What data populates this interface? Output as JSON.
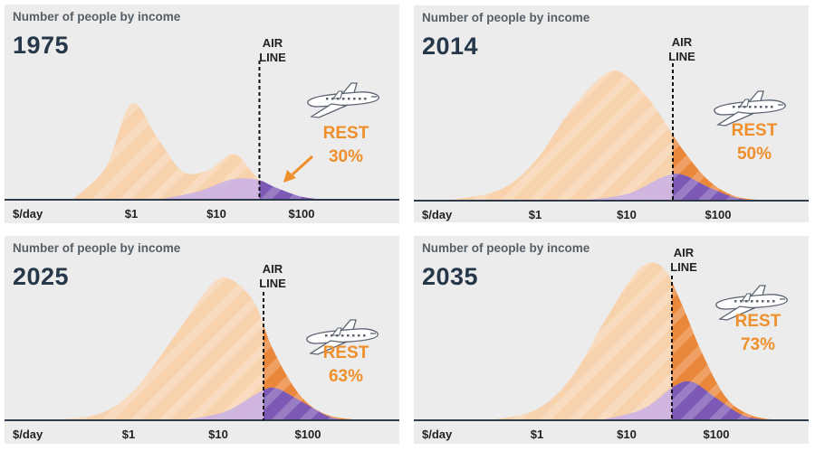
{
  "chart_data": [
    {
      "type": "area",
      "title": "Number of people by income",
      "year": "1975",
      "xlabel": "$/day",
      "x_scale": "log",
      "x_ticks": [
        "$1",
        "$10",
        "$100"
      ],
      "threshold_label": [
        "AIR",
        "LINE"
      ],
      "threshold_x": 32,
      "rest_label": "REST",
      "rest_share": "30%",
      "series": [
        {
          "name": "",
          "color": "#f7d2ad",
          "x": [
            0.2,
            0.5,
            1.0,
            2.0,
            4.0,
            8.0,
            16.0,
            30.0,
            50.0,
            100.0,
            200.0
          ],
          "values": [
            0.0,
            0.32,
            0.95,
            0.62,
            0.28,
            0.29,
            0.45,
            0.22,
            0.08,
            0.02,
            0.0
          ]
        },
        {
          "name": "",
          "color": "#cbb3e3",
          "x": [
            2.0,
            6.0,
            15.0,
            30.0,
            50.0,
            100.0,
            200.0
          ],
          "values": [
            0.0,
            0.08,
            0.2,
            0.2,
            0.12,
            0.03,
            0.0
          ]
        }
      ],
      "annotation": "arrow"
    },
    {
      "type": "area",
      "title": "Number of people by income",
      "year": "2014",
      "xlabel": "$/day",
      "x_scale": "log",
      "x_ticks": [
        "$1",
        "$10",
        "$100"
      ],
      "threshold_label": [
        "AIR",
        "LINE"
      ],
      "threshold_x": 32,
      "rest_label": "REST",
      "rest_share": "50%",
      "series": [
        {
          "name": "",
          "color": "#f7d2ad",
          "x": [
            0.1,
            0.4,
            1.0,
            2.5,
            6.0,
            10.0,
            20.0,
            40.0,
            80.0,
            160.0,
            400.0
          ],
          "values": [
            0.0,
            0.08,
            0.3,
            0.7,
            0.97,
            0.95,
            0.72,
            0.4,
            0.15,
            0.03,
            0.0
          ]
        },
        {
          "name": "",
          "color": "#cbb3e3",
          "x": [
            3.0,
            10.0,
            25.0,
            40.0,
            80.0,
            160.0,
            300.0
          ],
          "values": [
            0.0,
            0.05,
            0.18,
            0.2,
            0.1,
            0.02,
            0.0
          ]
        }
      ]
    },
    {
      "type": "area",
      "title": "Number of people by income",
      "year": "2025",
      "xlabel": "$/day",
      "x_scale": "log",
      "x_ticks": [
        "$1",
        "$10",
        "$100"
      ],
      "threshold_label": [
        "AIR",
        "LINE"
      ],
      "threshold_x": 32,
      "rest_label": "REST",
      "rest_share": "63%",
      "series": [
        {
          "name": "",
          "color": "#f7d2ad",
          "x": [
            0.15,
            0.5,
            1.2,
            3.0,
            8.0,
            13.0,
            25.0,
            40.0,
            80.0,
            160.0,
            400.0
          ],
          "values": [
            0.0,
            0.05,
            0.22,
            0.55,
            0.92,
            0.98,
            0.82,
            0.5,
            0.18,
            0.04,
            0.0
          ]
        },
        {
          "name": "",
          "color": "#cbb3e3",
          "x": [
            4.0,
            12.0,
            30.0,
            45.0,
            90.0,
            180.0,
            350.0
          ],
          "values": [
            0.0,
            0.06,
            0.2,
            0.22,
            0.12,
            0.02,
            0.0
          ]
        }
      ]
    },
    {
      "type": "area",
      "title": "Number of people by income",
      "year": "2035",
      "xlabel": "$/day",
      "x_scale": "log",
      "x_ticks": [
        "$1",
        "$10",
        "$100"
      ],
      "threshold_label": [
        "AIR",
        "LINE"
      ],
      "threshold_x": 32,
      "rest_label": "REST",
      "rest_share": "73%",
      "series": [
        {
          "name": "",
          "color": "#f7d2ad",
          "x": [
            0.3,
            1.0,
            2.5,
            6.0,
            14.0,
            25.0,
            40.0,
            70.0,
            130.0,
            250.0,
            500.0
          ],
          "values": [
            0.0,
            0.07,
            0.28,
            0.65,
            0.96,
            0.97,
            0.75,
            0.42,
            0.14,
            0.03,
            0.0
          ]
        },
        {
          "name": "",
          "color": "#cbb3e3",
          "x": [
            5.0,
            15.0,
            35.0,
            55.0,
            100.0,
            200.0,
            400.0
          ],
          "values": [
            0.0,
            0.07,
            0.22,
            0.24,
            0.14,
            0.03,
            0.0
          ]
        }
      ]
    }
  ]
}
